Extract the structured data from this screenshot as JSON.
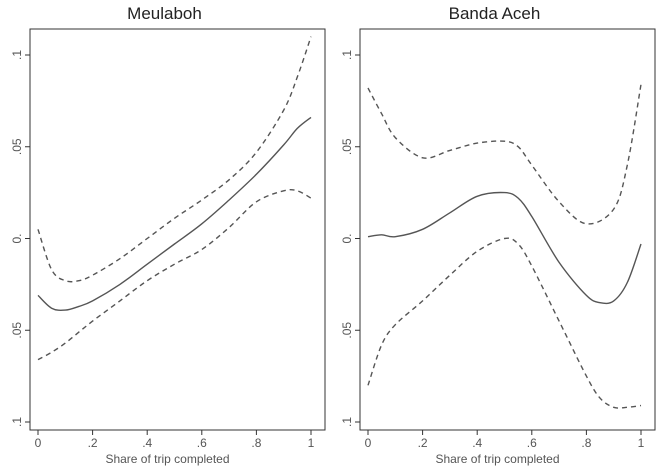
{
  "chart_data": [
    {
      "type": "line",
      "title": "Meulaboh",
      "xlabel": "Share of trip completed",
      "ylabel": "",
      "xlim": [
        0,
        1
      ],
      "ylim": [
        -0.1,
        0.1
      ],
      "xticks": [
        0,
        0.2,
        0.4,
        0.6,
        0.8,
        1
      ],
      "xtick_labels": [
        "0",
        ".2",
        ".4",
        ".6",
        ".8",
        "1"
      ],
      "yticks": [
        0.1,
        0.05,
        0,
        -0.05,
        -0.1
      ],
      "ytick_labels": [
        ".1",
        ".05",
        "0.",
        ".05",
        ".1"
      ],
      "grid": false,
      "series": [
        {
          "style": "solid",
          "color": "#555555",
          "x": [
            0,
            0.05,
            0.1,
            0.15,
            0.2,
            0.3,
            0.4,
            0.5,
            0.6,
            0.7,
            0.8,
            0.9,
            0.95,
            1
          ],
          "y": [
            -0.031,
            -0.038,
            -0.039,
            -0.037,
            -0.034,
            -0.025,
            -0.014,
            -0.003,
            0.008,
            0.021,
            0.035,
            0.051,
            0.06,
            0.066
          ]
        },
        {
          "style": "dashed",
          "color": "#555555",
          "x": [
            0,
            0.05,
            0.1,
            0.15,
            0.2,
            0.3,
            0.4,
            0.5,
            0.6,
            0.7,
            0.8,
            0.9,
            0.95,
            1
          ],
          "y": [
            0.005,
            -0.017,
            -0.023,
            -0.023,
            -0.02,
            -0.011,
            0,
            0.011,
            0.021,
            0.032,
            0.047,
            0.07,
            0.088,
            0.11
          ]
        },
        {
          "style": "dashed",
          "color": "#555555",
          "x": [
            0,
            0.05,
            0.1,
            0.15,
            0.2,
            0.3,
            0.4,
            0.5,
            0.6,
            0.7,
            0.8,
            0.9,
            0.95,
            1
          ],
          "y": [
            -0.066,
            -0.062,
            -0.057,
            -0.051,
            -0.045,
            -0.034,
            -0.023,
            -0.014,
            -0.006,
            0.006,
            0.02,
            0.026,
            0.026,
            0.022
          ]
        }
      ]
    },
    {
      "type": "line",
      "title": "Banda Aceh",
      "xlabel": "Share of trip completed",
      "ylabel": "",
      "xlim": [
        0,
        1
      ],
      "ylim": [
        -0.1,
        0.1
      ],
      "xticks": [
        0,
        0.2,
        0.4,
        0.6,
        0.8,
        1
      ],
      "xtick_labels": [
        "0",
        ".2",
        ".4",
        ".6",
        ".8",
        "1"
      ],
      "yticks": [
        0.1,
        0.05,
        0,
        -0.05,
        -0.1
      ],
      "ytick_labels": [
        ".1",
        ".05",
        "0.",
        ".05",
        ".1"
      ],
      "grid": false,
      "series": [
        {
          "style": "solid",
          "color": "#555555",
          "x": [
            0,
            0.05,
            0.1,
            0.2,
            0.3,
            0.4,
            0.5,
            0.55,
            0.6,
            0.7,
            0.8,
            0.85,
            0.9,
            0.95,
            1
          ],
          "y": [
            0.001,
            0.002,
            0.001,
            0.005,
            0.014,
            0.023,
            0.025,
            0.022,
            0.012,
            -0.013,
            -0.031,
            -0.035,
            -0.034,
            -0.024,
            -0.003
          ]
        },
        {
          "style": "dashed",
          "color": "#555555",
          "x": [
            0,
            0.05,
            0.1,
            0.2,
            0.3,
            0.4,
            0.5,
            0.55,
            0.6,
            0.7,
            0.8,
            0.9,
            0.95,
            1
          ],
          "y": [
            0.082,
            0.068,
            0.055,
            0.044,
            0.048,
            0.052,
            0.053,
            0.05,
            0.04,
            0.02,
            0.008,
            0.016,
            0.04,
            0.084
          ]
        },
        {
          "style": "dashed",
          "color": "#555555",
          "x": [
            0,
            0.05,
            0.1,
            0.2,
            0.3,
            0.4,
            0.5,
            0.55,
            0.6,
            0.7,
            0.8,
            0.85,
            0.9,
            0.95,
            1
          ],
          "y": [
            -0.08,
            -0.058,
            -0.047,
            -0.034,
            -0.02,
            -0.007,
            0,
            -0.003,
            -0.015,
            -0.045,
            -0.075,
            -0.087,
            -0.092,
            -0.092,
            -0.091
          ]
        }
      ]
    }
  ]
}
